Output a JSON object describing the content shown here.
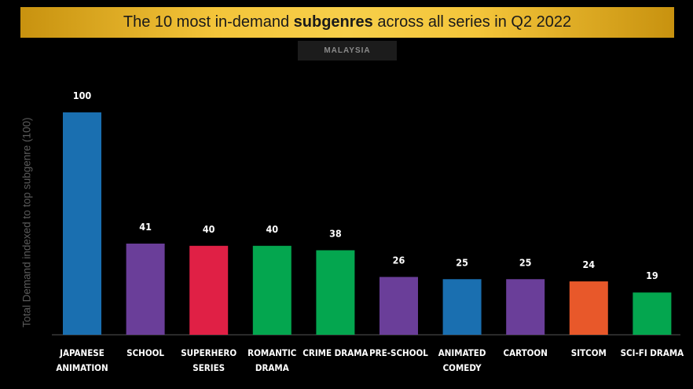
{
  "chart_data": {
    "type": "bar",
    "title_prefix": "The 10 most in-demand ",
    "title_bold": "subgenres",
    "title_suffix": " across all series in Q2 2022",
    "subtitle": "MALAYSIA",
    "ylabel": "Total Demand indexed to top subgenre (100)",
    "ylim": [
      0,
      100
    ],
    "categories": [
      [
        "JAPANESE",
        "ANIMATION"
      ],
      [
        "SCHOOL"
      ],
      [
        "SUPERHERO",
        "SERIES"
      ],
      [
        "ROMANTIC",
        "DRAMA"
      ],
      [
        "CRIME DRAMA"
      ],
      [
        "PRE-SCHOOL"
      ],
      [
        "ANIMATED",
        "COMEDY"
      ],
      [
        "CARTOON"
      ],
      [
        "SITCOM"
      ],
      [
        "SCI-FI DRAMA"
      ]
    ],
    "values": [
      100,
      41,
      40,
      40,
      38,
      26,
      25,
      25,
      24,
      19
    ],
    "colors": [
      "#1a6fb0",
      "#6a3e99",
      "#e02045",
      "#04a64f",
      "#04a64f",
      "#6a3e99",
      "#1a6fb0",
      "#6a3e99",
      "#e8582a",
      "#04a64f"
    ]
  }
}
